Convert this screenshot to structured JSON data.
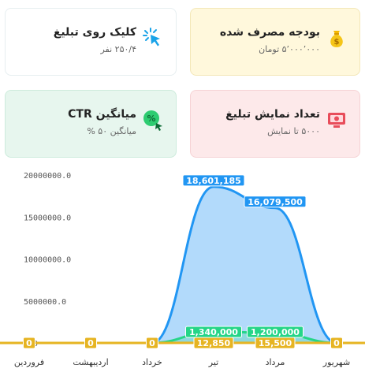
{
  "cards": {
    "budget": {
      "title": "بودجه مصرف شده",
      "sub": "۵٬۰۰۰٬۰۰۰ تومان",
      "icon": "money-bag-icon"
    },
    "clicks": {
      "title": "کلیک روی تبلیغ",
      "sub": "۲۵۰/۴ نفر",
      "icon": "cursor-click-icon"
    },
    "impressions": {
      "title": "تعداد نمایش تبلیغ",
      "sub": "۵۰۰۰ تا نمایش",
      "icon": "money-display-icon"
    },
    "ctr": {
      "title": "میانگین CTR",
      "sub": "میانگین ۵۰ %",
      "icon": "percent-coin-icon"
    }
  },
  "chart_data": {
    "type": "area",
    "categories": [
      "فروردین",
      "اردیبهشت",
      "خرداد",
      "تیر",
      "مرداد",
      "شهریور"
    ],
    "yticks": [
      "0.0",
      "5000000.0",
      "10000000.0",
      "15000000.0",
      "20000000.0"
    ],
    "ylim": [
      0,
      20000000
    ],
    "series": [
      {
        "values": [
          0,
          0,
          0,
          18601185,
          16079500,
          0
        ],
        "color": "#2196f3",
        "labels": [
          "",
          "",
          "",
          "18,601,185",
          "16,079,500",
          ""
        ]
      },
      {
        "values": [
          0,
          0,
          0,
          1340000,
          1200000,
          0
        ],
        "color": "#25d588",
        "labels": [
          "",
          "",
          "",
          "1,340,000",
          "1,200,000",
          ""
        ]
      },
      {
        "values": [
          0,
          0,
          0,
          12850,
          15500,
          0
        ],
        "color": "#e6b422",
        "labels": [
          "0",
          "0",
          "0",
          "12,850",
          "15,500",
          "0"
        ]
      }
    ]
  }
}
